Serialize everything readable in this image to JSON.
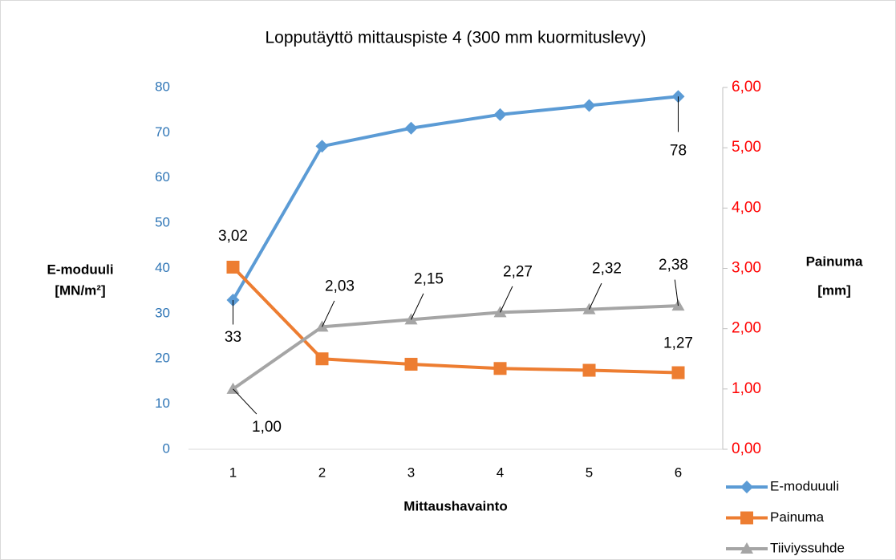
{
  "chart_data": {
    "type": "line",
    "title": "Lopputäyttö mittauspiste 4 (300 mm kuormituslevy)",
    "x_label": "Mittaushavainto",
    "y_label": [
      "E-moduuli",
      "[MN/m²]"
    ],
    "y2_label": [
      "Painuma",
      "[mm]"
    ],
    "categories": [
      "1",
      "2",
      "3",
      "4",
      "5",
      "6"
    ],
    "ylim": [
      0,
      80
    ],
    "yticks": [
      0,
      10,
      20,
      30,
      40,
      50,
      60,
      70,
      80
    ],
    "y2lim": [
      0,
      6
    ],
    "y2ticks": [
      {
        "value": 0,
        "label": "0,00"
      },
      {
        "value": 1,
        "label": "1,00"
      },
      {
        "value": 2,
        "label": "2,00"
      },
      {
        "value": 3,
        "label": "3,00"
      },
      {
        "value": 4,
        "label": "4,00"
      },
      {
        "value": 5,
        "label": "5,00"
      },
      {
        "value": 6,
        "label": "6,00"
      }
    ],
    "legend": "bottom-right",
    "series": [
      {
        "name": "E-moduuuli",
        "color": "#5B9BD5",
        "marker": "diamond",
        "values": [
          33,
          67,
          71,
          74,
          76,
          78
        ],
        "value_labels": [
          "33",
          null,
          null,
          null,
          null,
          "78"
        ]
      },
      {
        "name": "Painuma",
        "color": "#ED7D31",
        "marker": "square",
        "axis": "y2",
        "values": [
          3.02,
          1.5,
          1.41,
          1.34,
          1.31,
          1.27
        ],
        "value_labels": [
          "3,02",
          null,
          null,
          null,
          null,
          "1,27"
        ]
      },
      {
        "name": "Tiiviyssuhde",
        "color": "#A5A5A5",
        "marker": "triangle",
        "axis": "y2",
        "values": [
          1.0,
          2.03,
          2.15,
          2.27,
          2.32,
          2.38
        ],
        "value_labels": [
          "1,00",
          "2,03",
          "2,15",
          "2,27",
          "2,32",
          "2,38"
        ]
      }
    ]
  }
}
